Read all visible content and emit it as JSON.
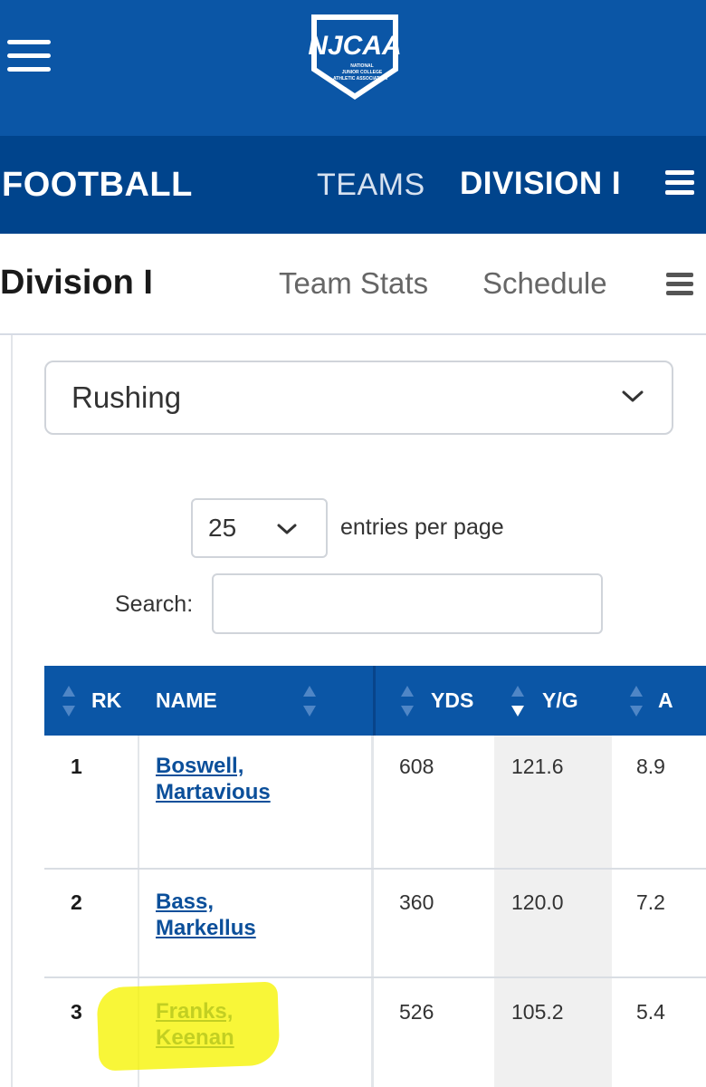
{
  "brand": {
    "logo_name": "NJCAA",
    "logo_sub": "NATIONAL JUNIOR COLLEGE ATHLETIC ASSOCIATION",
    "primary": "#0b56a6",
    "secondary": "#00448c"
  },
  "sport_nav": {
    "title": "FOOTBALL",
    "teams": "TEAMS",
    "division": "DIVISION I"
  },
  "division_nav": {
    "title": "Division I",
    "team_stats": "Team Stats",
    "schedule": "Schedule"
  },
  "stat_select": {
    "value": "Rushing"
  },
  "entries": {
    "value": "25",
    "label": "entries per page"
  },
  "search": {
    "label": "Search:",
    "placeholder": ""
  },
  "table": {
    "columns": [
      "RK",
      "NAME",
      "YDS",
      "Y/G",
      "A"
    ],
    "rows": [
      {
        "rk": "1",
        "name_line1": "Boswell,",
        "name_line2": "Martavious",
        "yds": "608",
        "yg": "121.6",
        "avg": "8.9"
      },
      {
        "rk": "2",
        "name_line1": "Bass,",
        "name_line2": "Markellus",
        "yds": "360",
        "yg": "120.0",
        "avg": "7.2"
      },
      {
        "rk": "3",
        "name_line1": "Franks,",
        "name_line2": "Keenan",
        "yds": "526",
        "yg": "105.2",
        "avg": "5.4"
      }
    ]
  },
  "icons": [
    "hamburger-icon",
    "chevron-down-icon",
    "sort-icon",
    "sort-desc-icon"
  ]
}
